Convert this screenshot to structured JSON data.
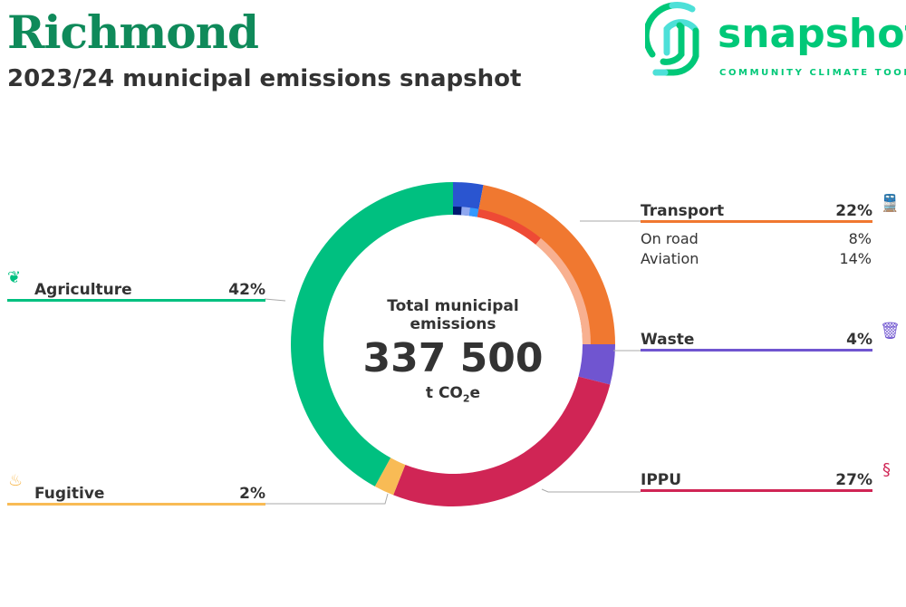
{
  "header": {
    "title": "Richmond",
    "subtitle": "2023/24 municipal emissions snapshot"
  },
  "logo": {
    "word": "snapshot",
    "tagline": "COMMUNITY CLIMATE TOOL"
  },
  "center": {
    "label": "Total municipal emissions",
    "value": "337 500",
    "unit_prefix": "t CO",
    "unit_sub": "2",
    "unit_suffix": "e"
  },
  "chart_data": {
    "type": "pie",
    "title": "Total municipal emissions",
    "total": 337500,
    "unit": "t CO2e",
    "series": [
      {
        "name": "",
        "value": 3,
        "color": "#2a55d0"
      },
      {
        "name": "Transport",
        "value": 22,
        "label": "22%",
        "color": "#f07830",
        "children": [
          {
            "name": "On road",
            "value": 8,
            "label": "8%",
            "color": "#ee4a35"
          },
          {
            "name": "Aviation",
            "value": 14,
            "label": "14%",
            "color": "#f8b090"
          }
        ]
      },
      {
        "name": "Waste",
        "value": 4,
        "label": "4%",
        "color": "#7055d0"
      },
      {
        "name": "IPPU",
        "value": 27,
        "label": "27%",
        "color": "#d02555"
      },
      {
        "name": "Fugitive",
        "value": 2,
        "label": "2%",
        "color": "#f8bb55"
      },
      {
        "name": "Agriculture",
        "value": 42,
        "label": "42%",
        "color": "#00c080"
      }
    ]
  }
}
